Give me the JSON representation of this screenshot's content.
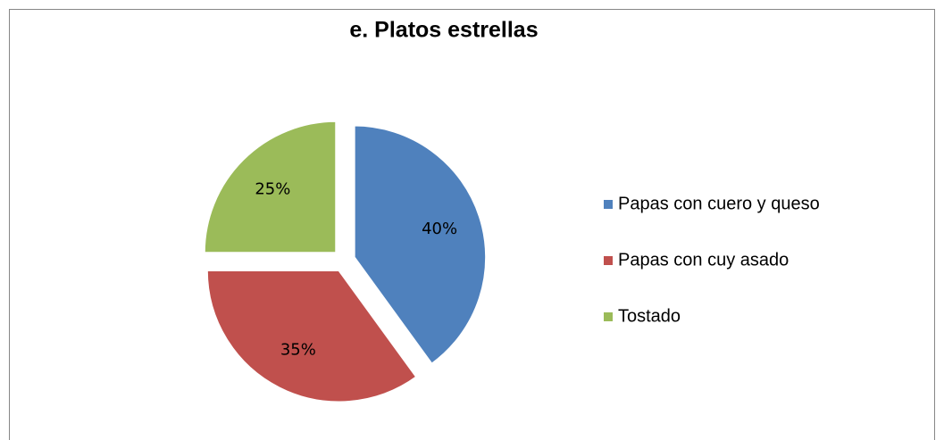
{
  "chart_data": {
    "type": "pie",
    "title": "e. Platos estrellas",
    "categories": [
      "Papas con cuero y queso",
      "Papas con cuy asado",
      "Tostado"
    ],
    "values": [
      40,
      35,
      25
    ],
    "value_labels": [
      "40%",
      "35%",
      "25%"
    ],
    "colors": [
      "#4f81bd",
      "#c0504d",
      "#9bbb59"
    ],
    "legend": "right"
  }
}
